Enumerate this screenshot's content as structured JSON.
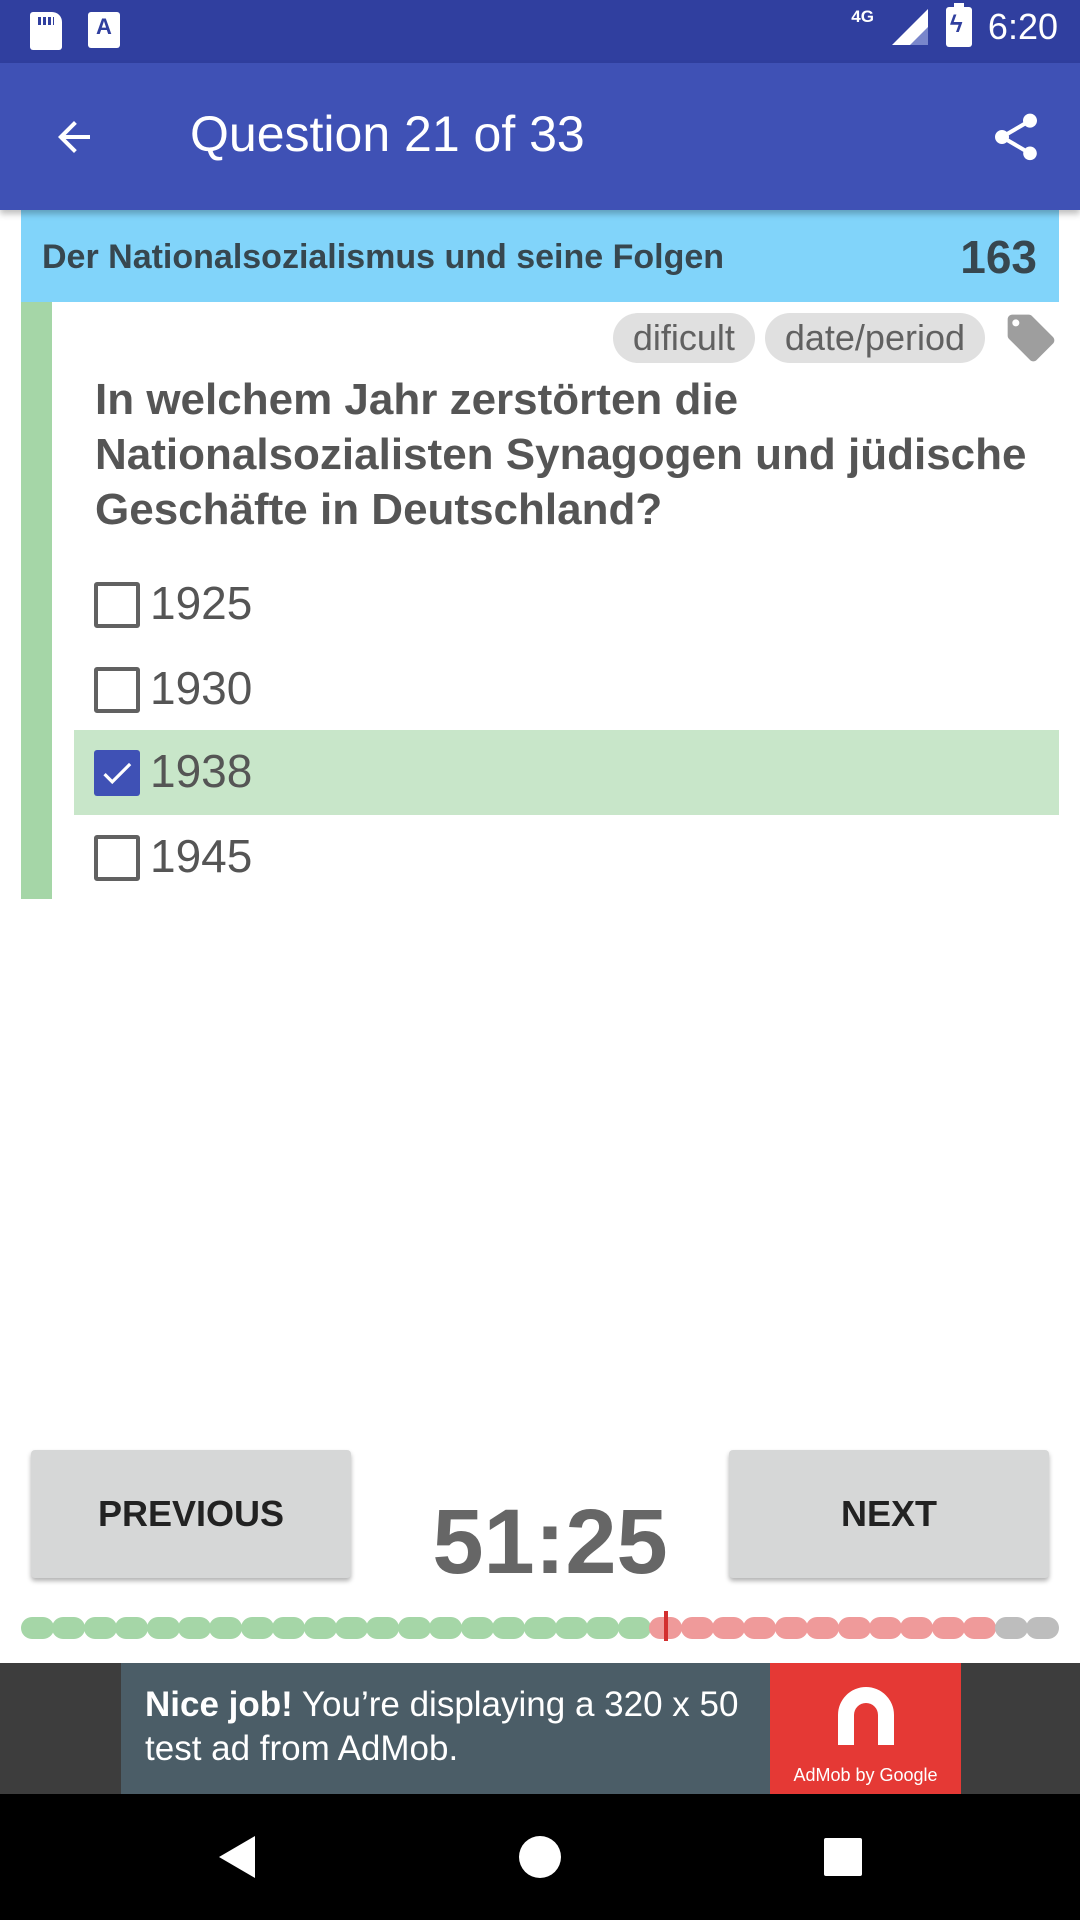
{
  "status_bar": {
    "network_label": "4G",
    "time": "6:20",
    "icons": [
      "sd-card-icon",
      "a-accessibility-icon",
      "signal-icon",
      "battery-charging-icon"
    ]
  },
  "app_bar": {
    "title": "Question 21 of 33",
    "back_icon": "arrow-back-icon",
    "share_icon": "share-icon",
    "color": "#3f51b5"
  },
  "topic": {
    "title": "Der Nationalsozialismus und seine Folgen",
    "count": "163",
    "color": "#81d4fa"
  },
  "question": {
    "tags": [
      "dificult",
      "date/period"
    ],
    "tag_icon": "tag-icon",
    "text": "In welchem Jahr zerstörten die Nationalsozialisten Synagogen und jüdische Geschäfte in Deutschland?",
    "answers": [
      {
        "label": "1925",
        "checked": false
      },
      {
        "label": "1930",
        "checked": false
      },
      {
        "label": "1938",
        "checked": true
      },
      {
        "label": "1945",
        "checked": false
      }
    ]
  },
  "navigation": {
    "previous_label": "PREVIOUS",
    "next_label": "NEXT",
    "timer": "51:25"
  },
  "progress": {
    "total": 33,
    "current": 21,
    "answered": 20,
    "pending": 11,
    "unseen": 2,
    "colors": {
      "answered": "#a5d6a7",
      "pending": "#ef9a9a",
      "unseen": "#bdbdbd",
      "marker": "#d32f2f"
    }
  },
  "ad": {
    "bold_text": "Nice job!",
    "text": " You’re displaying a 320 x 50 test ad from AdMob.",
    "logo_text": "AdMob by Google"
  },
  "system_nav": {
    "icons": [
      "back-triangle-icon",
      "home-circle-icon",
      "recents-square-icon"
    ]
  }
}
